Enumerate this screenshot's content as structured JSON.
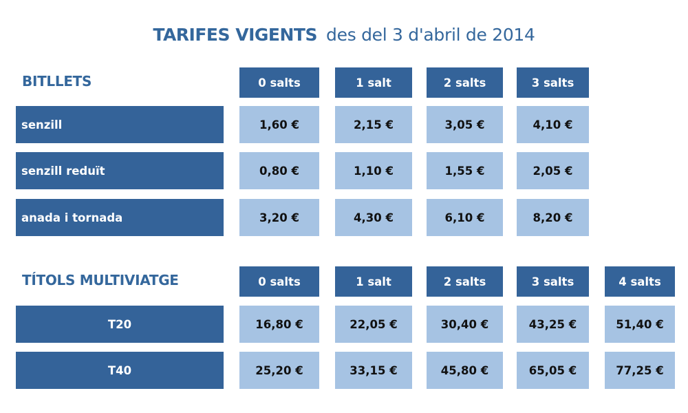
{
  "title": {
    "main": "TARIFES VIGENTS",
    "sub": "des del 3 d'abril de 2014"
  },
  "colors": {
    "header_blue": "#346399",
    "cell_light_blue": "#a6c3e3",
    "title_blue": "#34679c"
  },
  "bitllets": {
    "title": "BITLLETS",
    "columns": [
      "0 salts",
      "1 salt",
      "2 salts",
      "3 salts"
    ],
    "rows": [
      {
        "label": "senzill",
        "values": [
          "1,60 €",
          "2,15 €",
          "3,05 €",
          "4,10 €"
        ]
      },
      {
        "label": "senzill reduït",
        "values": [
          "0,80 €",
          "1,10 €",
          "1,55 €",
          "2,05 €"
        ]
      },
      {
        "label": "anada i tornada",
        "values": [
          "3,20 €",
          "4,30 €",
          "6,10 €",
          "8,20 €"
        ]
      }
    ]
  },
  "multiviatge": {
    "title": "TÍTOLS MULTIVIATGE",
    "columns": [
      "0 salts",
      "1 salt",
      "2 salts",
      "3 salts",
      "4 salts"
    ],
    "rows": [
      {
        "label": "T20",
        "values": [
          "16,80 €",
          "22,05 €",
          "30,40 €",
          "43,25 €",
          "51,40 €"
        ]
      },
      {
        "label": "T40",
        "values": [
          "25,20 €",
          "33,15 €",
          "45,80 €",
          "65,05 €",
          "77,25 €"
        ]
      }
    ]
  }
}
